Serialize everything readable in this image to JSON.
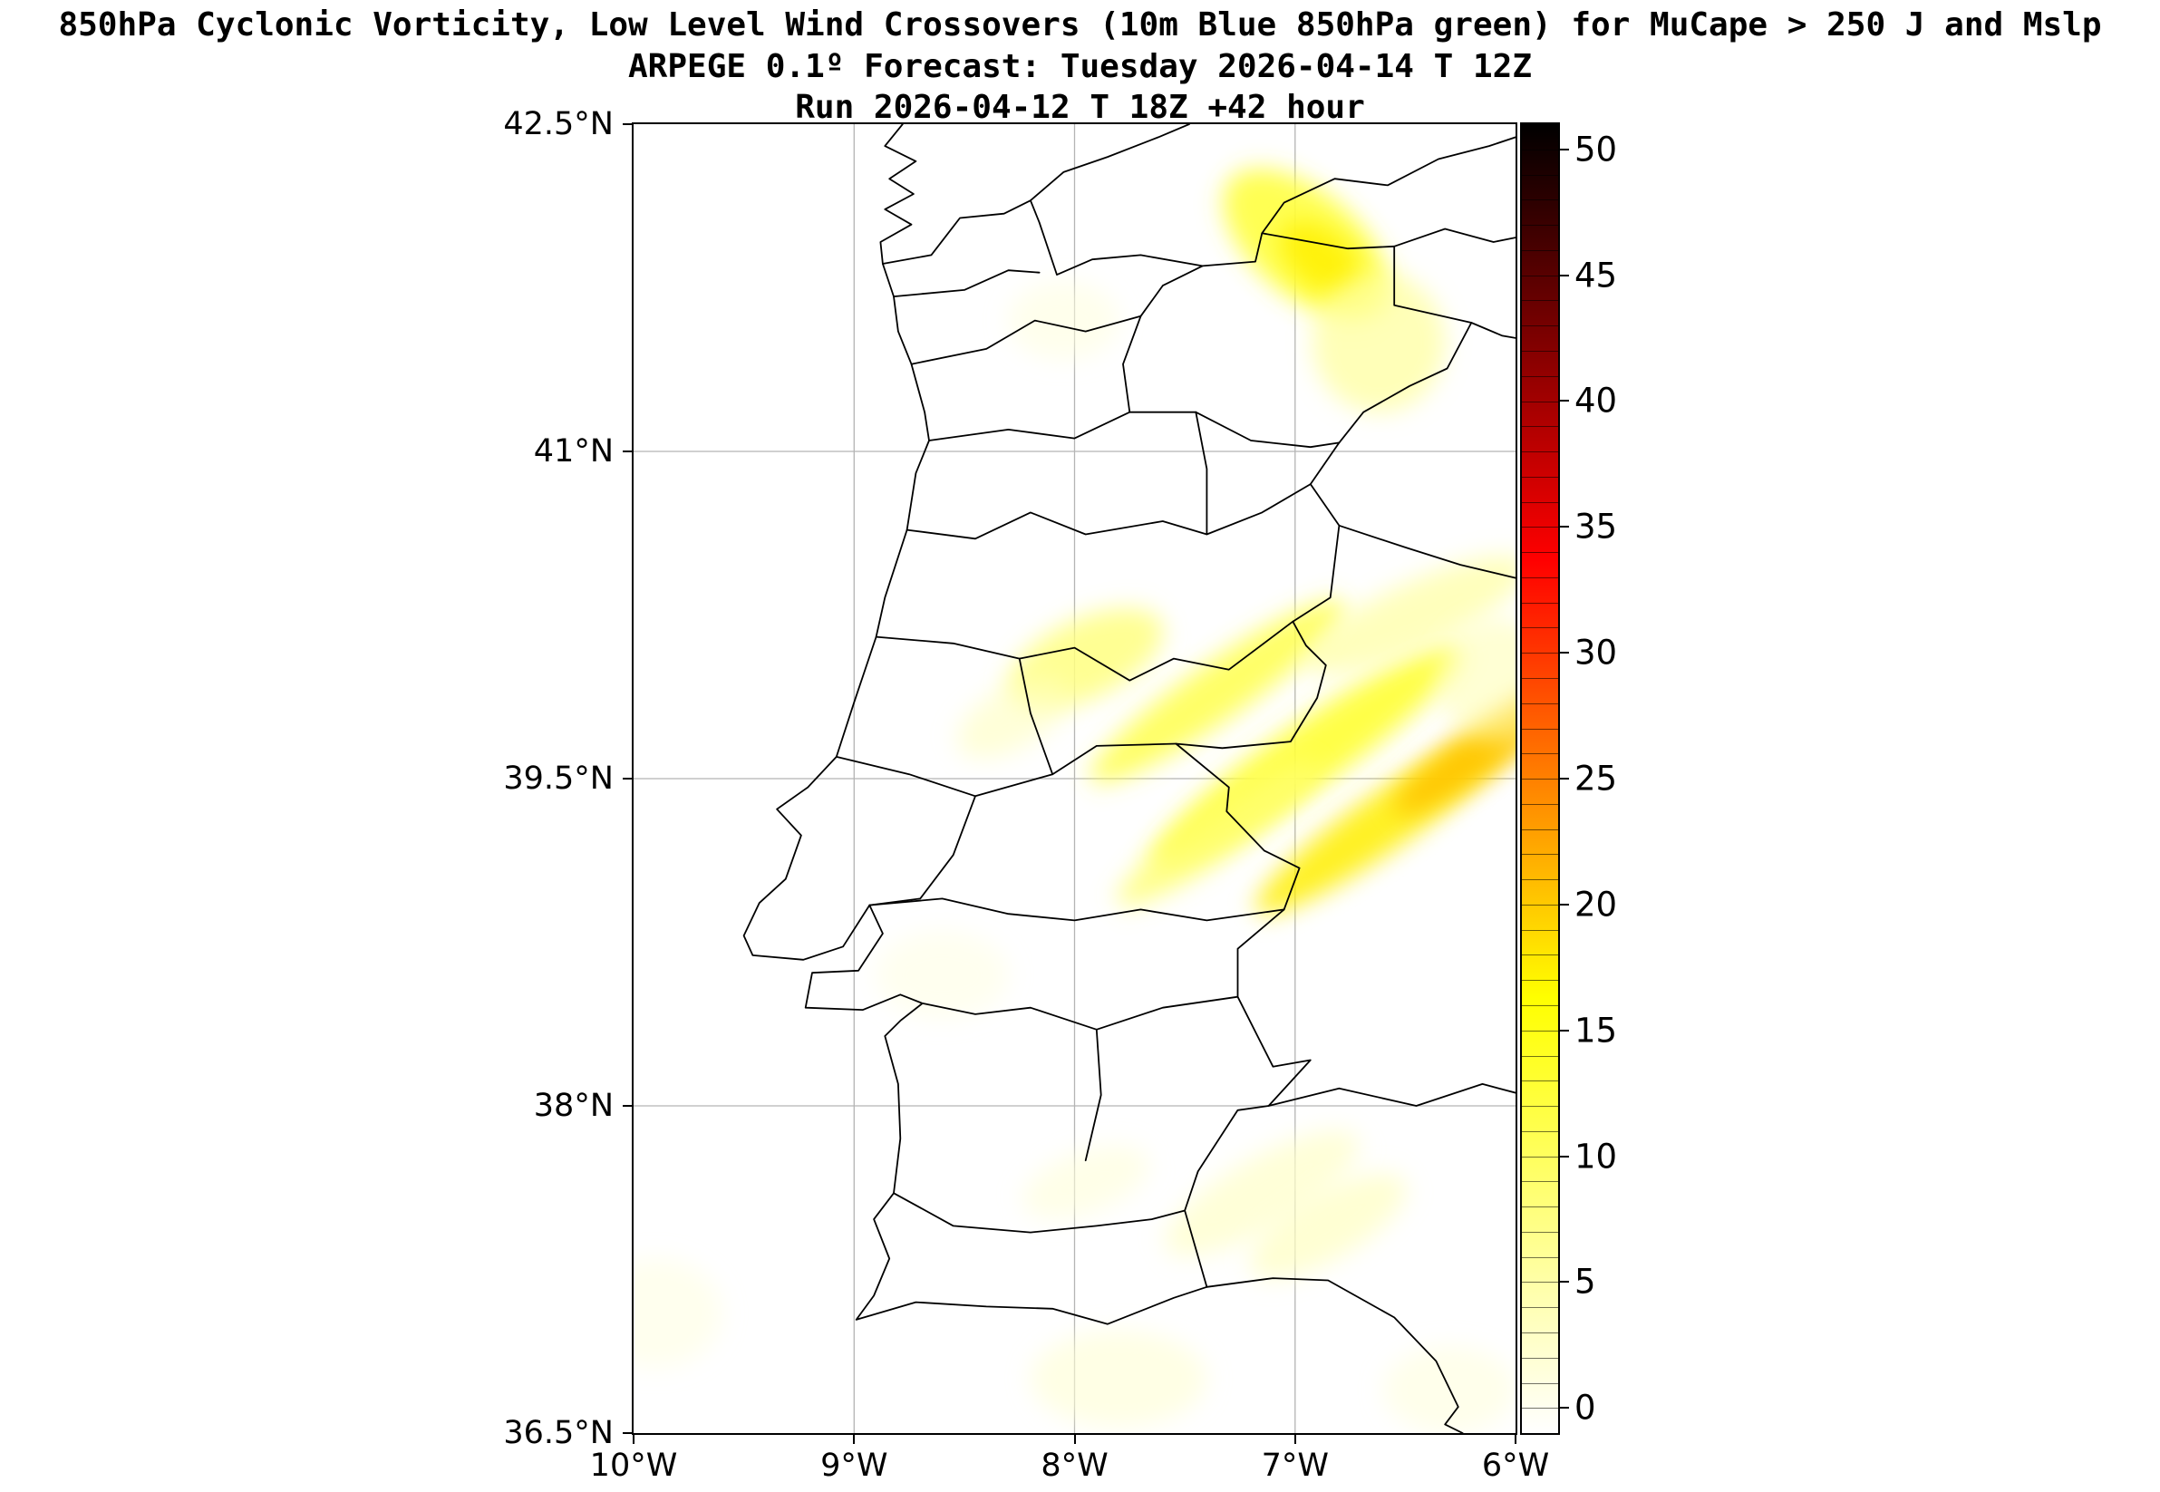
{
  "chart_data": {
    "type": "heatmap",
    "title": "850hPa Cyclonic Vorticity, Low Level Wind Crossovers (10m Blue 850hPa green) for MuCape > 250 J and Mslp",
    "subtitle": "ARPEGE 0.1º Forecast: Tuesday 2026-04-14 T 12Z",
    "run_info": "Run 2026-04-12 T 18Z +42 hour",
    "x_axis": {
      "range": [
        -10,
        -6
      ],
      "ticks": [
        {
          "value": -10,
          "label": "10°W"
        },
        {
          "value": -9,
          "label": "9°W"
        },
        {
          "value": -8,
          "label": "8°W"
        },
        {
          "value": -7,
          "label": "7°W"
        },
        {
          "value": -6,
          "label": "6°W"
        }
      ]
    },
    "y_axis": {
      "range": [
        36.5,
        42.5
      ],
      "ticks": [
        {
          "value": 42.5,
          "label": "42.5°N"
        },
        {
          "value": 41,
          "label": "41°N"
        },
        {
          "value": 39.5,
          "label": "39.5°N"
        },
        {
          "value": 38,
          "label": "38°N"
        },
        {
          "value": 36.5,
          "label": "36.5°N"
        }
      ]
    },
    "grid": {
      "lons": [
        -9,
        -8,
        -7
      ],
      "lats": [
        41,
        39.5,
        38
      ]
    },
    "colorbar": {
      "range": [
        -1,
        51
      ],
      "minor_step": 1,
      "ticks": [
        {
          "value": 0,
          "label": "0"
        },
        {
          "value": 5,
          "label": "5"
        },
        {
          "value": 10,
          "label": "10"
        },
        {
          "value": 15,
          "label": "15"
        },
        {
          "value": 20,
          "label": "20"
        },
        {
          "value": 25,
          "label": "25"
        },
        {
          "value": 30,
          "label": "30"
        },
        {
          "value": 35,
          "label": "35"
        },
        {
          "value": 40,
          "label": "40"
        },
        {
          "value": 45,
          "label": "45"
        },
        {
          "value": 50,
          "label": "50"
        }
      ],
      "stops": [
        {
          "pos": 0.0,
          "color": "#ffffff"
        },
        {
          "pos": 0.115,
          "color": "#ffffa7"
        },
        {
          "pos": 0.212,
          "color": "#ffff5d"
        },
        {
          "pos": 0.333,
          "color": "#ffff00"
        },
        {
          "pos": 0.404,
          "color": "#ffc900"
        },
        {
          "pos": 0.5,
          "color": "#ff8000"
        },
        {
          "pos": 0.596,
          "color": "#ff3600"
        },
        {
          "pos": 0.667,
          "color": "#ff0000"
        },
        {
          "pos": 0.75,
          "color": "#bf0000"
        },
        {
          "pos": 0.846,
          "color": "#760000"
        },
        {
          "pos": 0.942,
          "color": "#2c0000"
        },
        {
          "pos": 1.0,
          "color": "#000000"
        }
      ]
    },
    "style": {
      "boundary_color": "#000000",
      "grid_color": "#b4b4b4",
      "background": "#ffffff"
    },
    "map_boundaries": {
      "coastline": [
        [
          -8.78,
          42.5
        ],
        [
          -8.86,
          42.4
        ],
        [
          -8.72,
          42.33
        ],
        [
          -8.84,
          42.25
        ],
        [
          -8.73,
          42.18
        ],
        [
          -8.86,
          42.11
        ],
        [
          -8.74,
          42.04
        ],
        [
          -8.88,
          41.96
        ],
        [
          -8.87,
          41.86
        ],
        [
          -8.82,
          41.71
        ],
        [
          -8.8,
          41.55
        ],
        [
          -8.74,
          41.4
        ],
        [
          -8.68,
          41.18
        ],
        [
          -8.66,
          41.05
        ],
        [
          -8.72,
          40.9
        ],
        [
          -8.76,
          40.64
        ],
        [
          -8.86,
          40.33
        ],
        [
          -8.9,
          40.15
        ],
        [
          -9.0,
          39.85
        ],
        [
          -9.08,
          39.6
        ],
        [
          -9.21,
          39.46
        ],
        [
          -9.35,
          39.36
        ],
        [
          -9.24,
          39.24
        ],
        [
          -9.31,
          39.04
        ],
        [
          -9.43,
          38.93
        ],
        [
          -9.5,
          38.78
        ],
        [
          -9.46,
          38.69
        ],
        [
          -9.23,
          38.67
        ],
        [
          -9.05,
          38.73
        ],
        [
          -8.93,
          38.92
        ],
        [
          -8.87,
          38.79
        ],
        [
          -8.98,
          38.62
        ],
        [
          -9.19,
          38.61
        ],
        [
          -9.22,
          38.45
        ],
        [
          -8.96,
          38.44
        ],
        [
          -8.79,
          38.51
        ],
        [
          -8.69,
          38.47
        ],
        [
          -8.79,
          38.39
        ],
        [
          -8.86,
          38.32
        ],
        [
          -8.8,
          38.1
        ],
        [
          -8.79,
          37.85
        ],
        [
          -8.82,
          37.6
        ],
        [
          -8.91,
          37.48
        ],
        [
          -8.84,
          37.3
        ],
        [
          -8.91,
          37.13
        ],
        [
          -8.99,
          37.02
        ],
        [
          -8.72,
          37.1
        ],
        [
          -8.4,
          37.08
        ],
        [
          -8.1,
          37.07
        ],
        [
          -7.85,
          37.0
        ],
        [
          -7.55,
          37.12
        ],
        [
          -7.4,
          37.17
        ],
        [
          -7.1,
          37.21
        ],
        [
          -6.85,
          37.2
        ],
        [
          -6.55,
          37.03
        ],
        [
          -6.36,
          36.83
        ],
        [
          -6.26,
          36.62
        ],
        [
          -6.32,
          36.54
        ],
        [
          -6.24,
          36.5
        ]
      ],
      "border": [
        [
          -8.87,
          41.86
        ],
        [
          -8.65,
          41.9
        ],
        [
          -8.52,
          42.07
        ],
        [
          -8.32,
          42.09
        ],
        [
          -8.2,
          42.15
        ],
        [
          -8.16,
          42.05
        ],
        [
          -8.08,
          41.81
        ],
        [
          -7.92,
          41.88
        ],
        [
          -7.7,
          41.9
        ],
        [
          -7.42,
          41.85
        ],
        [
          -7.18,
          41.87
        ],
        [
          -7.15,
          42.0
        ],
        [
          -6.98,
          41.97
        ],
        [
          -6.76,
          41.93
        ],
        [
          -6.55,
          41.94
        ],
        [
          -6.55,
          41.67
        ],
        [
          -6.2,
          41.59
        ],
        [
          -6.31,
          41.38
        ],
        [
          -6.48,
          41.3
        ],
        [
          -6.69,
          41.18
        ],
        [
          -6.8,
          41.04
        ],
        [
          -6.93,
          40.85
        ],
        [
          -6.8,
          40.66
        ],
        [
          -6.84,
          40.33
        ],
        [
          -7.01,
          40.22
        ],
        [
          -6.95,
          40.11
        ],
        [
          -6.86,
          40.02
        ],
        [
          -6.9,
          39.87
        ],
        [
          -7.02,
          39.67
        ],
        [
          -7.33,
          39.64
        ],
        [
          -7.54,
          39.66
        ],
        [
          -7.3,
          39.46
        ],
        [
          -7.31,
          39.35
        ],
        [
          -7.14,
          39.17
        ],
        [
          -6.98,
          39.09
        ],
        [
          -7.05,
          38.9
        ],
        [
          -7.26,
          38.72
        ],
        [
          -7.26,
          38.5
        ],
        [
          -7.1,
          38.18
        ],
        [
          -6.93,
          38.21
        ],
        [
          -7.12,
          38.0
        ],
        [
          -7.26,
          37.98
        ],
        [
          -7.44,
          37.7
        ],
        [
          -7.5,
          37.52
        ],
        [
          -7.4,
          37.17
        ]
      ],
      "internal": [
        [
          [
            -8.82,
            41.71
          ],
          [
            -8.5,
            41.74
          ],
          [
            -8.3,
            41.83
          ],
          [
            -8.16,
            41.82
          ]
        ],
        [
          [
            -8.74,
            41.4
          ],
          [
            -8.4,
            41.47
          ],
          [
            -8.18,
            41.6
          ],
          [
            -7.95,
            41.55
          ],
          [
            -7.7,
            41.62
          ],
          [
            -7.6,
            41.76
          ],
          [
            -7.42,
            41.85
          ]
        ],
        [
          [
            -8.66,
            41.05
          ],
          [
            -8.3,
            41.1
          ],
          [
            -8.0,
            41.06
          ],
          [
            -7.75,
            41.18
          ],
          [
            -7.45,
            41.18
          ],
          [
            -7.2,
            41.05
          ],
          [
            -6.93,
            41.02
          ],
          [
            -6.8,
            41.04
          ]
        ],
        [
          [
            -7.75,
            41.18
          ],
          [
            -7.78,
            41.4
          ],
          [
            -7.7,
            41.62
          ]
        ],
        [
          [
            -8.76,
            40.64
          ],
          [
            -8.45,
            40.6
          ],
          [
            -8.2,
            40.72
          ],
          [
            -7.95,
            40.62
          ],
          [
            -7.6,
            40.68
          ],
          [
            -7.4,
            40.62
          ],
          [
            -7.15,
            40.72
          ],
          [
            -6.93,
            40.85
          ]
        ],
        [
          [
            -7.45,
            41.18
          ],
          [
            -7.4,
            40.92
          ],
          [
            -7.4,
            40.62
          ]
        ],
        [
          [
            -8.9,
            40.15
          ],
          [
            -8.55,
            40.12
          ],
          [
            -8.25,
            40.05
          ],
          [
            -8.0,
            40.1
          ],
          [
            -7.75,
            39.95
          ],
          [
            -7.55,
            40.05
          ],
          [
            -7.3,
            40.0
          ],
          [
            -7.01,
            40.22
          ]
        ],
        [
          [
            -9.08,
            39.6
          ],
          [
            -8.75,
            39.52
          ],
          [
            -8.45,
            39.42
          ],
          [
            -8.1,
            39.52
          ],
          [
            -7.9,
            39.65
          ],
          [
            -7.54,
            39.66
          ]
        ],
        [
          [
            -8.45,
            39.42
          ],
          [
            -8.55,
            39.15
          ],
          [
            -8.7,
            38.95
          ],
          [
            -8.93,
            38.92
          ]
        ],
        [
          [
            -8.93,
            38.92
          ],
          [
            -8.6,
            38.95
          ],
          [
            -8.3,
            38.88
          ],
          [
            -8.0,
            38.85
          ],
          [
            -7.7,
            38.9
          ],
          [
            -7.4,
            38.85
          ],
          [
            -7.05,
            38.9
          ]
        ],
        [
          [
            -8.69,
            38.47
          ],
          [
            -8.45,
            38.42
          ],
          [
            -8.2,
            38.45
          ],
          [
            -7.9,
            38.35
          ],
          [
            -7.6,
            38.45
          ],
          [
            -7.26,
            38.5
          ]
        ],
        [
          [
            -8.82,
            37.6
          ],
          [
            -8.55,
            37.45
          ],
          [
            -8.2,
            37.42
          ],
          [
            -7.9,
            37.45
          ],
          [
            -7.65,
            37.48
          ],
          [
            -7.5,
            37.52
          ]
        ],
        [
          [
            -8.25,
            40.05
          ],
          [
            -8.2,
            39.8
          ],
          [
            -8.1,
            39.52
          ]
        ],
        [
          [
            -7.9,
            38.35
          ],
          [
            -7.88,
            38.05
          ],
          [
            -7.95,
            37.75
          ]
        ]
      ],
      "spain": [
        [
          [
            -8.2,
            42.15
          ],
          [
            -8.05,
            42.28
          ],
          [
            -7.85,
            42.35
          ],
          [
            -7.62,
            42.44
          ],
          [
            -7.48,
            42.5
          ]
        ],
        [
          [
            -7.15,
            42.0
          ],
          [
            -7.05,
            42.14
          ],
          [
            -6.82,
            42.25
          ],
          [
            -6.58,
            42.22
          ],
          [
            -6.35,
            42.34
          ],
          [
            -6.12,
            42.4
          ],
          [
            -6.0,
            42.44
          ]
        ],
        [
          [
            -6.55,
            41.94
          ],
          [
            -6.32,
            42.02
          ],
          [
            -6.1,
            41.96
          ],
          [
            -6.0,
            41.98
          ]
        ],
        [
          [
            -6.2,
            41.59
          ],
          [
            -6.06,
            41.53
          ],
          [
            -6.0,
            41.52
          ]
        ],
        [
          [
            -6.8,
            40.66
          ],
          [
            -6.5,
            40.56
          ],
          [
            -6.25,
            40.48
          ],
          [
            -6.0,
            40.42
          ]
        ],
        [
          [
            -7.12,
            38.0
          ],
          [
            -6.8,
            38.08
          ],
          [
            -6.45,
            38.0
          ],
          [
            -6.15,
            38.1
          ],
          [
            -6.0,
            38.06
          ]
        ]
      ]
    },
    "vorticity_regions": [
      {
        "lon": -6.95,
        "lat": 41.95,
        "value": 12,
        "rx": 0.45,
        "ry": 0.24,
        "rot": 40,
        "color": "#ffff40",
        "opacity": 0.9
      },
      {
        "lon": -6.88,
        "lat": 41.88,
        "value": 16,
        "rx": 0.22,
        "ry": 0.13,
        "rot": 40,
        "color": "#fff000",
        "opacity": 0.85
      },
      {
        "lon": -6.62,
        "lat": 41.5,
        "value": 6,
        "rx": 0.3,
        "ry": 0.32,
        "rot": 0,
        "color": "#ffffa0",
        "opacity": 0.75
      },
      {
        "lon": -8.05,
        "lat": 41.6,
        "value": 2,
        "rx": 0.25,
        "ry": 0.18,
        "rot": 0,
        "color": "#ffffdd",
        "opacity": 0.55
      },
      {
        "lon": -7.95,
        "lat": 40.05,
        "value": 8,
        "rx": 0.38,
        "ry": 0.18,
        "rot": -25,
        "color": "#ffff80",
        "opacity": 0.85
      },
      {
        "lon": -8.28,
        "lat": 39.78,
        "value": 4,
        "rx": 0.28,
        "ry": 0.14,
        "rot": -30,
        "color": "#ffffc0",
        "opacity": 0.6
      },
      {
        "lon": -7.35,
        "lat": 39.9,
        "value": 11,
        "rx": 0.7,
        "ry": 0.13,
        "rot": -35,
        "color": "#ffff4d",
        "opacity": 0.85
      },
      {
        "lon": -6.95,
        "lat": 39.6,
        "value": 13,
        "rx": 0.85,
        "ry": 0.15,
        "rot": -35,
        "color": "#ffff33",
        "opacity": 0.9
      },
      {
        "lon": -6.6,
        "lat": 39.3,
        "value": 16,
        "rx": 0.7,
        "ry": 0.13,
        "rot": -35,
        "color": "#ffee00",
        "opacity": 0.85
      },
      {
        "lon": -6.12,
        "lat": 39.65,
        "value": 20,
        "rx": 0.52,
        "ry": 0.11,
        "rot": -35,
        "color": "#ffc400",
        "opacity": 0.9
      },
      {
        "lon": -7.35,
        "lat": 39.25,
        "value": 9,
        "rx": 0.55,
        "ry": 0.11,
        "rot": -35,
        "color": "#ffff70",
        "opacity": 0.8
      },
      {
        "lon": -6.45,
        "lat": 40.25,
        "value": 6,
        "rx": 0.55,
        "ry": 0.15,
        "rot": -25,
        "color": "#ffffa0",
        "opacity": 0.7
      },
      {
        "lon": -6.08,
        "lat": 39.95,
        "value": 5,
        "rx": 0.28,
        "ry": 0.28,
        "rot": 0,
        "color": "#ffffb0",
        "opacity": 0.55
      },
      {
        "lon": -7.15,
        "lat": 37.6,
        "value": 3,
        "rx": 0.5,
        "ry": 0.16,
        "rot": -30,
        "color": "#ffffc8",
        "opacity": 0.7
      },
      {
        "lon": -6.85,
        "lat": 37.45,
        "value": 3,
        "rx": 0.4,
        "ry": 0.15,
        "rot": -30,
        "color": "#ffffc0",
        "opacity": 0.7
      },
      {
        "lon": -7.95,
        "lat": 37.65,
        "value": 2,
        "rx": 0.3,
        "ry": 0.14,
        "rot": -20,
        "color": "#ffffd8",
        "opacity": 0.6
      },
      {
        "lon": -7.8,
        "lat": 36.75,
        "value": 2,
        "rx": 0.4,
        "ry": 0.22,
        "rot": 0,
        "color": "#ffffd4",
        "opacity": 0.6
      },
      {
        "lon": -9.9,
        "lat": 37.05,
        "value": 1.5,
        "rx": 0.3,
        "ry": 0.25,
        "rot": 0,
        "color": "#ffffe2",
        "opacity": 0.6
      },
      {
        "lon": -6.3,
        "lat": 36.7,
        "value": 2,
        "rx": 0.3,
        "ry": 0.2,
        "rot": 0,
        "color": "#ffffd8",
        "opacity": 0.5
      },
      {
        "lon": -8.6,
        "lat": 38.6,
        "value": 2,
        "rx": 0.3,
        "ry": 0.2,
        "rot": 0,
        "color": "#ffffe0",
        "opacity": 0.5
      }
    ]
  }
}
